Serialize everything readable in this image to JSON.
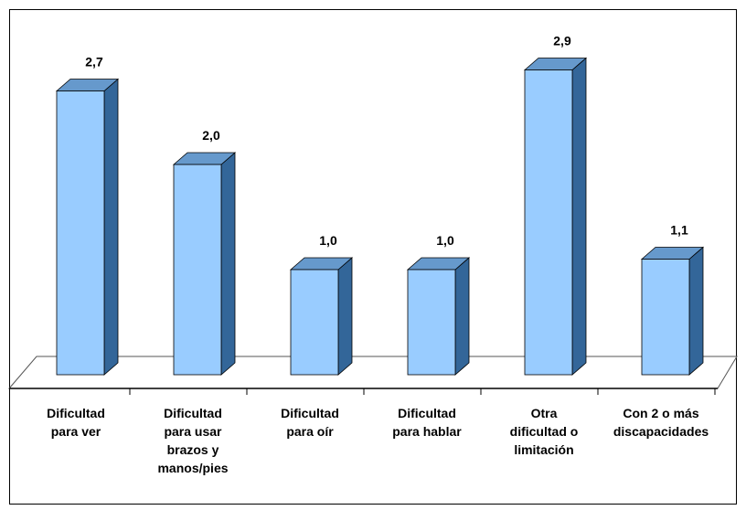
{
  "chart_data": {
    "type": "bar3d",
    "categories": [
      [
        "Dificultad",
        "para ver"
      ],
      [
        "Dificultad",
        "para usar",
        "brazos y",
        "manos/pies"
      ],
      [
        "Dificultad",
        "para oír"
      ],
      [
        "Dificultad",
        "para hablar"
      ],
      [
        "Otra",
        "dificultad o",
        "limitación"
      ],
      [
        "Con 2 o más",
        "discapacidades"
      ]
    ],
    "values": [
      2.7,
      2.0,
      1.0,
      1.0,
      2.9,
      1.1
    ],
    "value_labels": [
      "2,7",
      "2,0",
      "1,0",
      "1,0",
      "2,9",
      "1,1"
    ],
    "color": "#99ccff",
    "ylim": [
      0,
      3.2
    ]
  }
}
